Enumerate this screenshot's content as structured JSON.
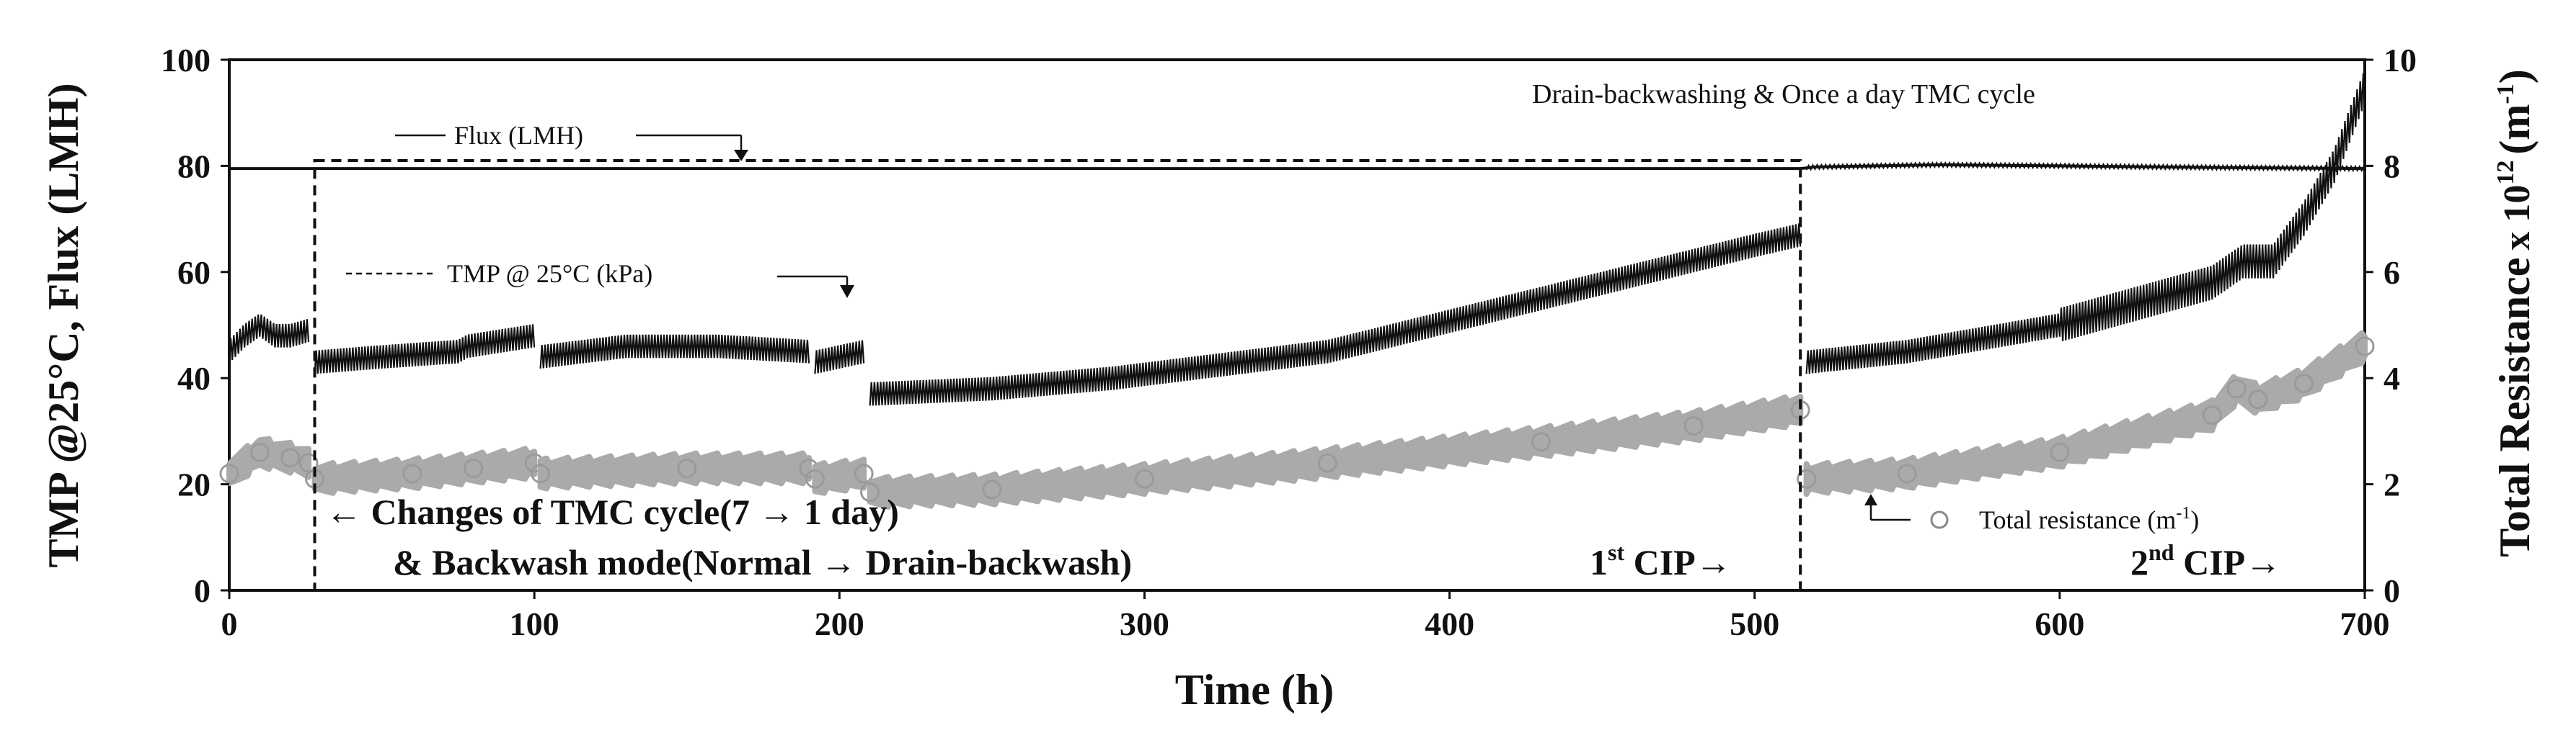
{
  "chart_data": {
    "type": "scatter",
    "xlabel": "Time (h)",
    "ylabel_left": "TMP @25°C, Flux (LMH)",
    "ylabel_right_main": "Total Resistance",
    "ylabel_right_mult": "x 10",
    "ylabel_right_exp": "12",
    "ylabel_right_unit": "(m",
    "ylabel_right_unit_exp": "-1",
    "ylabel_right_close": ")",
    "xlim": [
      0,
      700
    ],
    "ylim_left": [
      0,
      100
    ],
    "ylim_right": [
      0,
      10
    ],
    "x_ticks": [
      "0",
      "100",
      "200",
      "300",
      "400",
      "500",
      "600",
      "700"
    ],
    "y_left_ticks": [
      "0",
      "20",
      "40",
      "60",
      "80",
      "100"
    ],
    "y_right_ticks": [
      "0",
      "2",
      "4",
      "6",
      "8",
      "10"
    ],
    "series": [
      {
        "name": "Flux (LMH)",
        "axis": "left",
        "color": "#111111",
        "points": [
          [
            0,
            79.5
          ],
          [
            100,
            79.5
          ],
          [
            200,
            79.5
          ],
          [
            300,
            79.5
          ],
          [
            400,
            79.5
          ],
          [
            515,
            79.5
          ],
          [
            520,
            79.8
          ],
          [
            560,
            80.2
          ],
          [
            600,
            80.0
          ],
          [
            650,
            79.7
          ],
          [
            700,
            79.5
          ]
        ]
      },
      {
        "name": "TMP @ 25°C (kPa)",
        "axis": "left",
        "color": "#111111",
        "segments": [
          [
            [
              0,
              45
            ],
            [
              5,
              48
            ],
            [
              10,
              50
            ],
            [
              15,
              48
            ],
            [
              20,
              48
            ],
            [
              26,
              49
            ]
          ],
          [
            [
              28,
              43
            ],
            [
              50,
              44
            ],
            [
              75,
              45
            ],
            [
              78,
              46
            ],
            [
              100,
              48
            ]
          ],
          [
            [
              102,
              44
            ],
            [
              130,
              46
            ],
            [
              160,
              46
            ],
            [
              190,
              45
            ]
          ],
          [
            [
              192,
              43
            ],
            [
              208,
              45
            ]
          ],
          [
            [
              210,
              37
            ],
            [
              250,
              38
            ],
            [
              290,
              40
            ],
            [
              360,
              45
            ],
            [
              430,
              55
            ],
            [
              500,
              65
            ],
            [
              515,
              67
            ]
          ],
          [
            [
              517,
              43
            ],
            [
              550,
              45
            ],
            [
              600,
              50
            ],
            [
              650,
              58
            ],
            [
              660,
              62
            ],
            [
              670,
              62
            ],
            [
              680,
              70
            ],
            [
              690,
              80
            ],
            [
              700,
              95
            ]
          ]
        ]
      },
      {
        "name": "Total resistance (m-1)",
        "axis": "right",
        "color": "#aaaaaa",
        "segments": [
          [
            [
              0,
              2.2
            ],
            [
              10,
              2.6
            ],
            [
              20,
              2.5
            ],
            [
              26,
              2.4
            ]
          ],
          [
            [
              28,
              2.1
            ],
            [
              60,
              2.2
            ],
            [
              80,
              2.3
            ],
            [
              100,
              2.4
            ]
          ],
          [
            [
              102,
              2.2
            ],
            [
              150,
              2.3
            ],
            [
              190,
              2.3
            ]
          ],
          [
            [
              192,
              2.1
            ],
            [
              208,
              2.2
            ]
          ],
          [
            [
              210,
              1.85
            ],
            [
              250,
              1.9
            ],
            [
              300,
              2.1
            ],
            [
              360,
              2.4
            ],
            [
              430,
              2.8
            ],
            [
              480,
              3.1
            ],
            [
              515,
              3.4
            ]
          ],
          [
            [
              517,
              2.1
            ],
            [
              550,
              2.2
            ],
            [
              600,
              2.6
            ],
            [
              650,
              3.3
            ],
            [
              658,
              3.8
            ],
            [
              665,
              3.6
            ],
            [
              680,
              3.9
            ],
            [
              700,
              4.6
            ]
          ]
        ]
      }
    ],
    "annotations": {
      "flux_legend": "Flux (LMH)",
      "tmp_legend": "TMP @ 25°C (kPa)",
      "resistance_legend_main": "Total resistance (m",
      "resistance_legend_exp": "-1",
      "resistance_legend_close": ")",
      "drain_note": "Drain-backwashing & Once a day TMC cycle",
      "tmc_change": "← Changes of TMC cycle(7 → 1 day)",
      "backwash_change": "& Backwash mode(Normal → Drain-backwash)",
      "cip1_main": "1",
      "cip1_sup": "st",
      "cip1_tail": " CIP→",
      "cip2_main": "2",
      "cip2_sup": "nd",
      "cip2_tail": " CIP→"
    },
    "regions": [
      {
        "x": [
          28,
          515
        ],
        "y_left": [
          0,
          81
        ]
      }
    ],
    "grid": false
  }
}
